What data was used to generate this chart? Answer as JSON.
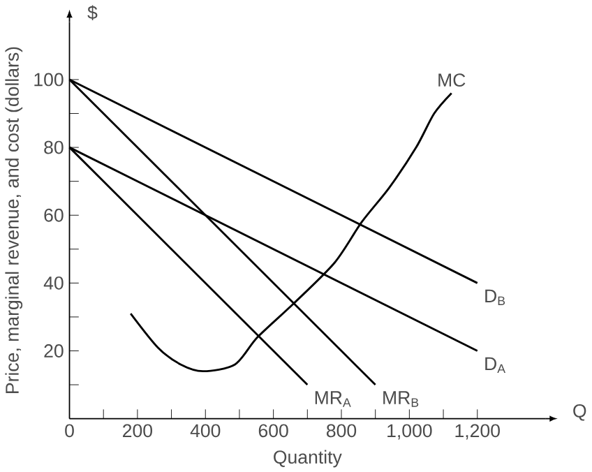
{
  "chart_data": {
    "type": "line",
    "xlabel": "Quantity",
    "ylabel": "Price, marginal revenue, and cost (dollars)",
    "annotations": [
      "$",
      "Q"
    ],
    "xlim": [
      0,
      1400
    ],
    "ylim": [
      0,
      117
    ],
    "xticks": [
      {
        "value": 0,
        "label": "0"
      },
      {
        "value": 100,
        "label": null
      },
      200,
      {
        "value": 300,
        "label": null
      },
      400,
      {
        "value": 500,
        "label": null
      },
      600,
      {
        "value": 700,
        "label": null
      },
      800,
      {
        "value": 900,
        "label": null
      },
      {
        "value": 1000,
        "label": "1,000"
      },
      {
        "value": 1100,
        "label": null
      },
      {
        "value": 1200,
        "label": "1,200"
      }
    ],
    "yticks": [
      {
        "value": 10,
        "label": null
      },
      20,
      {
        "value": 30,
        "label": null
      },
      40,
      {
        "value": 50,
        "label": null
      },
      60,
      {
        "value": 70,
        "label": null
      },
      80,
      {
        "value": 90,
        "label": null
      },
      100
    ],
    "grid": false,
    "legend": false,
    "marker": "none",
    "line_style": "solid",
    "series": [
      {
        "name": "MC",
        "color": "#000000",
        "x": [
          180,
          260,
          327,
          393,
          487,
          553,
          660,
          780,
          860,
          940,
          1020,
          1073,
          1124
        ],
        "values": [
          31,
          21,
          16,
          14,
          16,
          24,
          34,
          46,
          58,
          68,
          80,
          90,
          96
        ]
      },
      {
        "name": "D$_{B}$",
        "color": "#000000",
        "x": [
          0,
          1200
        ],
        "values": [
          100,
          40
        ]
      },
      {
        "name": "D$_{A}$",
        "color": "#000000",
        "x": [
          0,
          1200
        ],
        "values": [
          80,
          20
        ]
      },
      {
        "name": "MR$_{B}$",
        "color": "#000000",
        "x": [
          0,
          900
        ],
        "values": [
          100,
          10
        ]
      },
      {
        "name": "MR$_{A}$",
        "color": "#000000",
        "x": [
          0,
          700
        ],
        "values": [
          80,
          10
        ]
      }
    ]
  }
}
